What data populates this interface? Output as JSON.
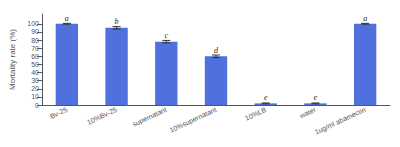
{
  "chart_data": {
    "type": "bar",
    "categories": [
      "Bv-25",
      "10%Bv-25",
      "supernatant",
      "10%supernatant",
      "10%LB",
      "water",
      "1ug/ml abamectin"
    ],
    "values": [
      100,
      95,
      78,
      60,
      2,
      2,
      100
    ],
    "errors": [
      0.5,
      1.5,
      1.5,
      1.5,
      0.5,
      0.5,
      0.5
    ],
    "annotations": [
      "a",
      "b",
      "c",
      "d",
      "e",
      "e",
      "a"
    ],
    "ylabel": "Mortality rate (%)",
    "ylim": [
      0,
      112
    ],
    "yticks": [
      0,
      10,
      20,
      30,
      40,
      50,
      60,
      70,
      80,
      90,
      100
    ],
    "grid": false
  }
}
